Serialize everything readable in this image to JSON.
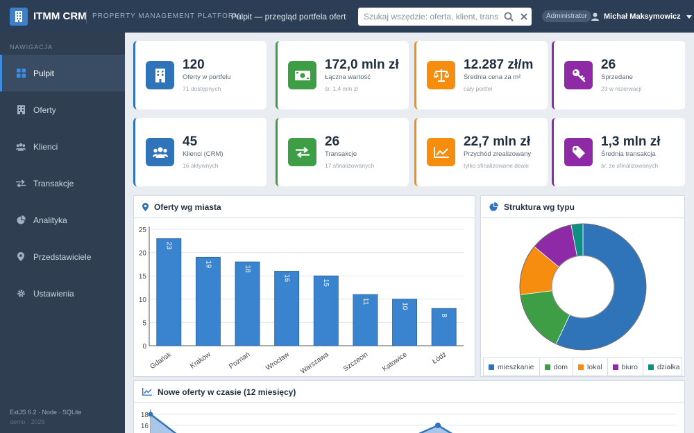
{
  "app": {
    "title": "ITMM CRM",
    "subtitle": "PROPERTY MANAGEMENT PLATFORM",
    "page_heading": "Pulpit — przegląd portfela ofert",
    "search_placeholder": "Szukaj wszędzie: oferta, klient, transakcja...",
    "role": "Administrator",
    "user": "Michał Maksymowicz"
  },
  "sidebar": {
    "heading": "NAWIGACJA",
    "items": [
      {
        "label": "Pulpit",
        "icon": "grid-icon",
        "active": true
      },
      {
        "label": "Oferty",
        "icon": "building-icon"
      },
      {
        "label": "Klienci",
        "icon": "users-icon"
      },
      {
        "label": "Transakcje",
        "icon": "exchange-icon"
      },
      {
        "label": "Analityka",
        "icon": "pie-chart-icon"
      },
      {
        "label": "Przedstawiciele",
        "icon": "map-marker-icon"
      },
      {
        "label": "Ustawienia",
        "icon": "gear-icon"
      }
    ],
    "footer_line1": "ExtJS 6.2 · Node · SQLite",
    "footer_line2": "demo · 2026"
  },
  "kpis": [
    {
      "value": "120",
      "label": "Oferty w portfelu",
      "sub": "71 dostępnych",
      "icon": "building-icon",
      "color": "#2f73b8"
    },
    {
      "value": "172,0 mln zł",
      "label": "Łączna wartość",
      "sub": "śr. 1,4 mln zł",
      "icon": "money-icon",
      "color": "#3d9e46"
    },
    {
      "value": "12.287 zł/m",
      "label": "Średnia cena za m²",
      "sub": "cały portfel",
      "icon": "balance-icon",
      "color": "#f68d0e"
    },
    {
      "value": "26",
      "label": "Sprzedane",
      "sub": "23 w rezerwacji",
      "icon": "key-icon",
      "color": "#8e2aa6"
    },
    {
      "value": "45",
      "label": "Klienci (CRM)",
      "sub": "16 aktywnych",
      "icon": "users-icon",
      "color": "#2f73b8"
    },
    {
      "value": "26",
      "label": "Transakcje",
      "sub": "17 sfinalizowanych",
      "icon": "exchange-icon",
      "color": "#3d9e46"
    },
    {
      "value": "22,7 mln zł",
      "label": "Przychód zrealizowany",
      "sub": "tylko sfinalizowane deale",
      "icon": "line-chart-icon",
      "color": "#f68d0e"
    },
    {
      "value": "1,3 mln zł",
      "label": "Średnia transakcja",
      "sub": "śr. ze sfinalizowanych",
      "icon": "tag-icon",
      "color": "#8e2aa6"
    }
  ],
  "panels": {
    "cities_title": "Oferty wg miasta",
    "types_title": "Struktura wg typu",
    "timeline_title": "Nowe oferty w czasie (12 miesięcy)"
  },
  "chart_data": [
    {
      "type": "bar",
      "title": "Oferty wg miasta",
      "categories": [
        "Gdańsk",
        "Kraków",
        "Poznań",
        "Wrocław",
        "Warszawa",
        "Szczecin",
        "Katowice",
        "Łódź"
      ],
      "values": [
        23,
        19,
        18,
        16,
        15,
        11,
        10,
        8
      ],
      "ylim": [
        0,
        25
      ],
      "yticks": [
        0,
        5,
        10,
        15,
        20,
        25
      ],
      "grid": true,
      "color": "#3a83cf"
    },
    {
      "type": "pie",
      "title": "Struktura wg typu",
      "categories": [
        "mieszkanie",
        "dom",
        "lokal",
        "biuro",
        "działka"
      ],
      "values": [
        57,
        16,
        13,
        11,
        3
      ],
      "colors": [
        "#2f73b8",
        "#3d9e46",
        "#f68d0e",
        "#8e2aa6",
        "#0e8f82"
      ],
      "legend": "bottom"
    },
    {
      "type": "area",
      "title": "Nowe oferty w czasie (12 miesięcy)",
      "yticks": [
        16,
        18
      ],
      "ylim": [
        0,
        18
      ],
      "grid": true
    }
  ]
}
